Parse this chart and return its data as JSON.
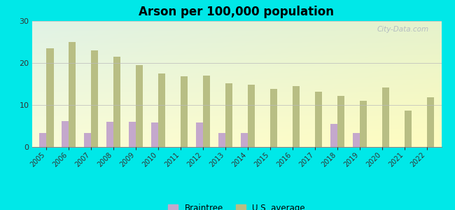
{
  "title": "Arson per 100,000 population",
  "years": [
    2005,
    2006,
    2007,
    2008,
    2009,
    2010,
    2011,
    2012,
    2013,
    2014,
    2015,
    2016,
    2017,
    2018,
    2019,
    2020,
    2021,
    2022
  ],
  "braintree": [
    3.3,
    6.2,
    3.3,
    6.0,
    6.0,
    5.8,
    0,
    5.9,
    3.3,
    3.3,
    0,
    0,
    0,
    5.5,
    3.3,
    0,
    0,
    0
  ],
  "us_average": [
    23.5,
    25.0,
    23.0,
    21.5,
    19.5,
    17.5,
    16.8,
    17.0,
    15.2,
    14.8,
    13.8,
    14.5,
    13.2,
    12.2,
    11.0,
    14.2,
    8.7,
    11.8
  ],
  "braintree_color": "#c4a8cc",
  "us_avg_color": "#b8be84",
  "background_color": "#00e8e8",
  "plot_bg": "#e8f5ee",
  "ylim": [
    0,
    30
  ],
  "yticks": [
    0,
    10,
    20,
    30
  ],
  "bar_width": 0.32,
  "watermark": "City-Data.com",
  "legend_braintree": "Braintree",
  "legend_us": "U.S. average"
}
